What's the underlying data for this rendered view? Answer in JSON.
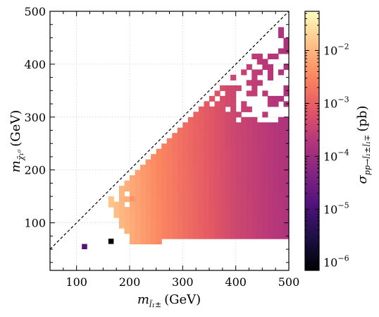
{
  "chart_data": {
    "type": "heatmap",
    "title": "",
    "xlabel": "m_{l̃₁^±} (GeV)",
    "xlabel_parts": {
      "base": "m",
      "sub": "l̃₁±",
      "unit": "(GeV)"
    },
    "ylabel": "m_{χ̃₁⁰} (GeV)",
    "ylabel_parts": {
      "base": "m",
      "sub": "χ̃₁⁰",
      "unit": "(GeV)"
    },
    "xlim": [
      50,
      500
    ],
    "ylim": [
      10,
      500
    ],
    "xticks": [
      100,
      200,
      300,
      400,
      500
    ],
    "xtick_labels": [
      "100",
      "200",
      "300",
      "400",
      "500"
    ],
    "yticks": [
      100,
      200,
      300,
      400,
      500
    ],
    "ytick_labels": [
      "100",
      "200",
      "300",
      "400",
      "500"
    ],
    "grid": true,
    "diagonal_reference": {
      "from": [
        50,
        50
      ],
      "to": [
        500,
        500
      ],
      "style": "dashed"
    },
    "cell_size": {
      "x": 10,
      "y": 10
    },
    "colorbar": {
      "label": "σ_{pp→l̃₁±l̃₁∓} (pb)",
      "label_parts": {
        "base": "σ",
        "sub": "pp→l̃₁±l̃₁∓",
        "unit": "(pb)"
      },
      "scale": "log",
      "range": [
        7e-07,
        0.055
      ],
      "colormap": "magma",
      "ticks": [
        1e-06,
        1e-05,
        0.0001,
        0.001,
        0.01
      ],
      "tick_labels": [
        "10",
        "10",
        "10",
        "10",
        "10"
      ],
      "tick_exponents": [
        "−6",
        "−5",
        "−4",
        "−3",
        "−2"
      ]
    },
    "model": {
      "description": "cross-section falls with slepton mass",
      "anchor_points": [
        [
          150,
          0.02
        ],
        [
          200,
          0.0085
        ],
        [
          300,
          0.0017
        ],
        [
          400,
          0.0004
        ],
        [
          500,
          0.000165
        ]
      ]
    },
    "special_cells": [
      {
        "x": 115,
        "y": 55,
        "value": 1.2e-05
      },
      {
        "x": 165,
        "y": 65,
        "value": 7e-07
      },
      {
        "x": 205,
        "y": 145,
        "value": 0.0045
      }
    ],
    "colors": {
      "frame": "#000000",
      "grid": "#cfcfcf",
      "background": "#ffffff"
    }
  }
}
